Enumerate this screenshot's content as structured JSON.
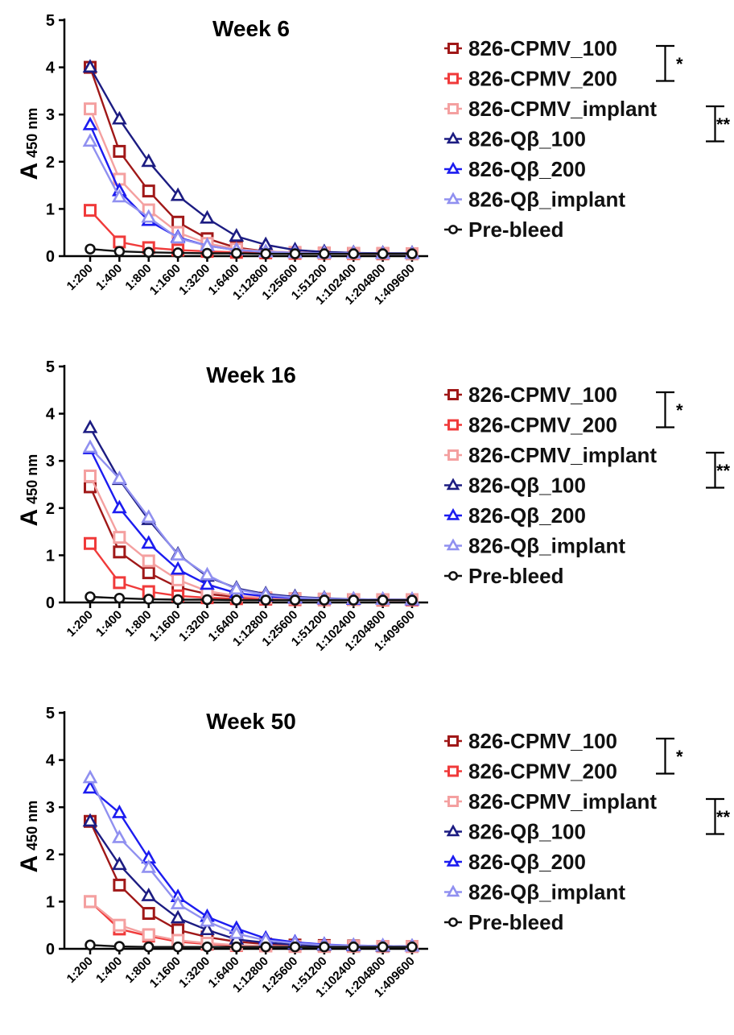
{
  "chart_data": [
    {
      "type": "line",
      "title": "Week 6",
      "ylabel": "A",
      "ylabel_sub": "450 nm",
      "yticks": [
        "0",
        "1",
        "2",
        "3",
        "4",
        "5"
      ],
      "ylim": [
        0,
        5
      ],
      "categories": [
        "1:200",
        "1:400",
        "1:800",
        "1:1600",
        "1:3200",
        "1:6400",
        "1:12800",
        "1:25600",
        "1:51200",
        "1:102400",
        "1:204800",
        "1:409600"
      ],
      "series": [
        {
          "name": "826-CPMV_100",
          "color": "#a01818",
          "marker": "square",
          "values": [
            4.0,
            2.22,
            1.38,
            0.72,
            0.37,
            0.18,
            0.1,
            0.07,
            0.06,
            0.06,
            0.05,
            0.05
          ]
        },
        {
          "name": "826-CPMV_200",
          "color": "#f03a3a",
          "marker": "square",
          "values": [
            0.97,
            0.3,
            0.18,
            0.13,
            0.1,
            0.08,
            0.07,
            0.06,
            0.06,
            0.05,
            0.05,
            0.05
          ]
        },
        {
          "name": "826-CPMV_implant",
          "color": "#f4a0a0",
          "marker": "square",
          "values": [
            3.12,
            1.63,
            0.98,
            0.5,
            0.27,
            0.15,
            0.1,
            0.08,
            0.07,
            0.06,
            0.06,
            0.05
          ]
        },
        {
          "name": "826-Qβ_100",
          "color": "#1c1c82",
          "marker": "triangle",
          "values": [
            4.0,
            2.9,
            2.0,
            1.28,
            0.8,
            0.42,
            0.24,
            0.13,
            0.09,
            0.07,
            0.06,
            0.06
          ]
        },
        {
          "name": "826-Qβ_200",
          "color": "#1c1cf0",
          "marker": "triangle",
          "values": [
            2.78,
            1.38,
            0.75,
            0.4,
            0.22,
            0.13,
            0.09,
            0.07,
            0.06,
            0.06,
            0.05,
            0.05
          ]
        },
        {
          "name": "826-Qβ_implant",
          "color": "#9090f0",
          "marker": "triangle",
          "values": [
            2.43,
            1.25,
            0.82,
            0.38,
            0.22,
            0.13,
            0.09,
            0.07,
            0.06,
            0.06,
            0.05,
            0.05
          ]
        },
        {
          "name": "Pre-bleed",
          "color": "#111111",
          "marker": "circle",
          "values": [
            0.15,
            0.1,
            0.08,
            0.07,
            0.06,
            0.06,
            0.05,
            0.05,
            0.05,
            0.05,
            0.05,
            0.05
          ]
        }
      ],
      "significance": [
        {
          "label": "*",
          "between": [
            "826-CPMV_100",
            "826-CPMV_200"
          ]
        },
        {
          "label": "**",
          "between": [
            "826-CPMV_implant",
            "826-Qβ_100"
          ]
        }
      ]
    },
    {
      "type": "line",
      "title": "Week 16",
      "ylabel": "A",
      "ylabel_sub": "450 nm",
      "yticks": [
        "0",
        "1",
        "2",
        "3",
        "4",
        "5"
      ],
      "ylim": [
        0,
        5
      ],
      "categories": [
        "1:200",
        "1:400",
        "1:800",
        "1:1600",
        "1:3200",
        "1:6400",
        "1:12800",
        "1:25600",
        "1:51200",
        "1:102400",
        "1:204800",
        "1:409600"
      ],
      "series": [
        {
          "name": "826-CPMV_100",
          "color": "#a01818",
          "marker": "square",
          "values": [
            2.45,
            1.07,
            0.63,
            0.32,
            0.18,
            0.12,
            0.09,
            0.08,
            0.07,
            0.06,
            0.06,
            0.06
          ]
        },
        {
          "name": "826-CPMV_200",
          "color": "#f03a3a",
          "marker": "square",
          "values": [
            1.25,
            0.42,
            0.23,
            0.14,
            0.1,
            0.08,
            0.07,
            0.06,
            0.06,
            0.06,
            0.05,
            0.05
          ]
        },
        {
          "name": "826-CPMV_implant",
          "color": "#f4a0a0",
          "marker": "square",
          "values": [
            2.68,
            1.38,
            0.88,
            0.48,
            0.24,
            0.14,
            0.1,
            0.08,
            0.07,
            0.06,
            0.06,
            0.06
          ]
        },
        {
          "name": "826-Qβ_100",
          "color": "#1c1c82",
          "marker": "triangle",
          "values": [
            3.7,
            2.6,
            1.75,
            1.02,
            0.55,
            0.3,
            0.18,
            0.12,
            0.09,
            0.07,
            0.06,
            0.06
          ]
        },
        {
          "name": "826-Qβ_200",
          "color": "#1c1cf0",
          "marker": "triangle",
          "values": [
            3.25,
            2.0,
            1.25,
            0.7,
            0.38,
            0.2,
            0.13,
            0.09,
            0.07,
            0.06,
            0.06,
            0.05
          ]
        },
        {
          "name": "826-Qβ_implant",
          "color": "#9090f0",
          "marker": "triangle",
          "values": [
            3.28,
            2.62,
            1.8,
            1.0,
            0.58,
            0.28,
            0.16,
            0.1,
            0.08,
            0.07,
            0.06,
            0.06
          ]
        },
        {
          "name": "Pre-bleed",
          "color": "#111111",
          "marker": "circle",
          "values": [
            0.12,
            0.09,
            0.07,
            0.06,
            0.06,
            0.05,
            0.05,
            0.05,
            0.05,
            0.05,
            0.05,
            0.05
          ]
        }
      ],
      "significance": [
        {
          "label": "*",
          "between": [
            "826-CPMV_100",
            "826-CPMV_200"
          ]
        },
        {
          "label": "**",
          "between": [
            "826-CPMV_implant",
            "826-Qβ_100"
          ]
        }
      ]
    },
    {
      "type": "line",
      "title": "Week 50",
      "ylabel": "A",
      "ylabel_sub": "450 nm",
      "yticks": [
        "0",
        "1",
        "2",
        "3",
        "4",
        "5"
      ],
      "ylim": [
        0,
        5
      ],
      "categories": [
        "1:200",
        "1:400",
        "1:800",
        "1:1600",
        "1:3200",
        "1:6400",
        "1:12800",
        "1:25600",
        "1:51200",
        "1:102400",
        "1:204800",
        "1:409600"
      ],
      "series": [
        {
          "name": "826-CPMV_100",
          "color": "#a01818",
          "marker": "square",
          "values": [
            2.7,
            1.35,
            0.75,
            0.4,
            0.25,
            0.15,
            0.1,
            0.08,
            0.07,
            0.06,
            0.05,
            0.05
          ]
        },
        {
          "name": "826-CPMV_200",
          "color": "#f03a3a",
          "marker": "square",
          "values": [
            1.0,
            0.42,
            0.27,
            0.15,
            0.1,
            0.07,
            0.06,
            0.05,
            0.05,
            0.05,
            0.05,
            0.05
          ]
        },
        {
          "name": "826-CPMV_implant",
          "color": "#f4a0a0",
          "marker": "square",
          "values": [
            1.0,
            0.5,
            0.3,
            0.18,
            0.12,
            0.08,
            0.06,
            0.05,
            0.05,
            0.05,
            0.05,
            0.05
          ]
        },
        {
          "name": "826-Qβ_100",
          "color": "#1c1c82",
          "marker": "triangle",
          "values": [
            2.7,
            1.78,
            1.12,
            0.65,
            0.4,
            0.2,
            0.13,
            0.09,
            0.07,
            0.06,
            0.05,
            0.05
          ]
        },
        {
          "name": "826-Qβ_200",
          "color": "#1c1cf0",
          "marker": "triangle",
          "values": [
            3.4,
            2.88,
            1.92,
            1.1,
            0.68,
            0.43,
            0.22,
            0.14,
            0.09,
            0.07,
            0.06,
            0.05
          ]
        },
        {
          "name": "826-Qβ_implant",
          "color": "#9090f0",
          "marker": "triangle",
          "values": [
            3.62,
            2.35,
            1.72,
            0.95,
            0.58,
            0.32,
            0.18,
            0.12,
            0.08,
            0.07,
            0.06,
            0.05
          ]
        },
        {
          "name": "Pre-bleed",
          "color": "#111111",
          "marker": "circle",
          "values": [
            0.08,
            0.05,
            0.04,
            0.04,
            0.04,
            0.04,
            0.04,
            0.04,
            0.04,
            0.04,
            0.04,
            0.04
          ]
        }
      ],
      "significance": [
        {
          "label": "*",
          "between": [
            "826-CPMV_100",
            "826-CPMV_200"
          ]
        },
        {
          "label": "**",
          "between": [
            "826-CPMV_implant",
            "826-Qβ_100"
          ]
        }
      ]
    }
  ]
}
